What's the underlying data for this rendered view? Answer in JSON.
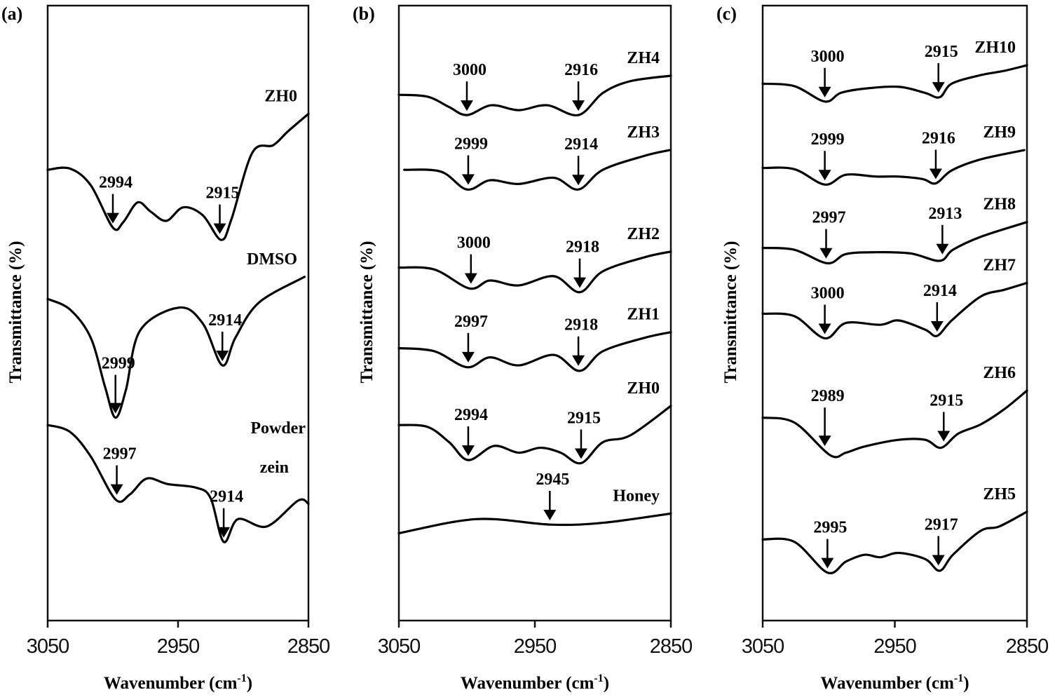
{
  "chart_data": [
    {
      "type": "line",
      "panel_label": "(a)",
      "xlabel": "Wavenumber (cm",
      "xlabel_sup": "-1",
      "xlabel_close": ")",
      "ylabel": "Transmittance (%)",
      "xlim": [
        3050,
        2850
      ],
      "xticks": [
        "3050",
        "2950",
        "2850"
      ],
      "ylim": [
        0,
        100
      ],
      "grid": false,
      "series": [
        {
          "name": [
            "ZH0"
          ],
          "points": [
            [
              3050,
              73.3
            ],
            [
              3033,
              73.5
            ],
            [
              3017,
              70.8
            ],
            [
              3000,
              63.9
            ],
            [
              2992,
              64.8
            ],
            [
              2981,
              68
            ],
            [
              2971,
              66.5
            ],
            [
              2959,
              65
            ],
            [
              2946,
              67.2
            ],
            [
              2931,
              65.9
            ],
            [
              2917,
              61.9
            ],
            [
              2909,
              65.3
            ],
            [
              2893,
              76.1
            ],
            [
              2877,
              77.3
            ],
            [
              2866,
              79.5
            ],
            [
              2850,
              82.4
            ]
          ],
          "peaks": [
            {
              "label": "2994",
              "x": 3000
            },
            {
              "label": "2915",
              "x": 2918
            }
          ]
        },
        {
          "name": [
            "DMSO"
          ],
          "points": [
            [
              3050,
              52.3
            ],
            [
              3033,
              50.6
            ],
            [
              3017,
              46
            ],
            [
              3006,
              38
            ],
            [
              2998,
              33
            ],
            [
              2990,
              37.5
            ],
            [
              2979,
              47.2
            ],
            [
              2949,
              50.9
            ],
            [
              2931,
              48.3
            ],
            [
              2916,
              41.5
            ],
            [
              2906,
              46
            ],
            [
              2888,
              51.7
            ],
            [
              2853,
              55.9
            ]
          ],
          "peaks": [
            {
              "label": "2999",
              "x": 2998,
              "long": true
            },
            {
              "label": "2914",
              "x": 2916
            }
          ]
        },
        {
          "name": [
            "Powder",
            "zein"
          ],
          "points": [
            [
              3050,
              31.8
            ],
            [
              3033,
              30.7
            ],
            [
              3017,
              26.7
            ],
            [
              2998,
              19.7
            ],
            [
              2987,
              20.5
            ],
            [
              2974,
              23.1
            ],
            [
              2958,
              22.2
            ],
            [
              2936,
              21.6
            ],
            [
              2925,
              19.9
            ],
            [
              2915,
              12.8
            ],
            [
              2904,
              16.5
            ],
            [
              2882,
              15.3
            ],
            [
              2858,
              19.5
            ],
            [
              2850,
              19
            ]
          ],
          "peaks": [
            {
              "label": "2997",
              "x": 2997
            },
            {
              "label": "2914",
              "x": 2915
            }
          ]
        }
      ]
    },
    {
      "type": "line",
      "panel_label": "(b)",
      "xlabel": "Wavenumber (cm",
      "xlabel_sup": "-1",
      "xlabel_close": ")",
      "ylabel": "Transmittance (%)",
      "xlim": [
        3050,
        2850
      ],
      "xticks": [
        "3050",
        "2950",
        "2850"
      ],
      "ylim": [
        0,
        100
      ],
      "grid": false,
      "series": [
        {
          "name": [
            "ZH4"
          ],
          "points": [
            [
              3050,
              85.5
            ],
            [
              3029,
              85.2
            ],
            [
              3013,
              83.5
            ],
            [
              3000,
              82.2
            ],
            [
              2982,
              83.8
            ],
            [
              2962,
              83
            ],
            [
              2941,
              83.8
            ],
            [
              2918,
              82.2
            ],
            [
              2900,
              85.8
            ],
            [
              2880,
              87.7
            ],
            [
              2850,
              88.6
            ]
          ],
          "peaks": [
            {
              "label": "3000",
              "x": 3000
            },
            {
              "label": "2916",
              "x": 2918
            }
          ]
        },
        {
          "name": [
            "ZH3"
          ],
          "points": [
            [
              3046,
              73.3
            ],
            [
              3019,
              73
            ],
            [
              3000,
              70.1
            ],
            [
              2983,
              71.6
            ],
            [
              2962,
              71
            ],
            [
              2936,
              72
            ],
            [
              2918,
              70.1
            ],
            [
              2900,
              73.3
            ],
            [
              2869,
              75.6
            ],
            [
              2851,
              76.5
            ]
          ],
          "peaks": [
            {
              "label": "2999",
              "x": 2999
            },
            {
              "label": "2914",
              "x": 2918
            }
          ]
        },
        {
          "name": [
            "ZH2"
          ],
          "points": [
            [
              3050,
              57.4
            ],
            [
              3024,
              57.1
            ],
            [
              2998,
              54
            ],
            [
              2983,
              55.3
            ],
            [
              2962,
              54.5
            ],
            [
              2936,
              56
            ],
            [
              2917,
              53.4
            ],
            [
              2900,
              56.8
            ],
            [
              2869,
              59.1
            ],
            [
              2850,
              60
            ]
          ],
          "peaks": [
            {
              "label": "3000",
              "x": 2997
            },
            {
              "label": "2918",
              "x": 2917
            }
          ]
        },
        {
          "name": [
            "ZH1"
          ],
          "points": [
            [
              3050,
              44.3
            ],
            [
              3024,
              43.8
            ],
            [
              3000,
              41.2
            ],
            [
              2983,
              42.8
            ],
            [
              2962,
              41.5
            ],
            [
              2936,
              43.2
            ],
            [
              2917,
              40.6
            ],
            [
              2900,
              43.8
            ],
            [
              2869,
              46
            ],
            [
              2850,
              46.9
            ]
          ],
          "peaks": [
            {
              "label": "2997",
              "x": 2999
            },
            {
              "label": "2918",
              "x": 2918
            }
          ]
        },
        {
          "name": [
            "ZH0"
          ],
          "points": [
            [
              3050,
              31.8
            ],
            [
              3029,
              31.5
            ],
            [
              3013,
              29
            ],
            [
              2999,
              26.1
            ],
            [
              2980,
              28.4
            ],
            [
              2962,
              27.3
            ],
            [
              2946,
              28.1
            ],
            [
              2931,
              27.3
            ],
            [
              2916,
              25.6
            ],
            [
              2900,
              29
            ],
            [
              2880,
              30.1
            ],
            [
              2850,
              34.9
            ]
          ],
          "peaks": [
            {
              "label": "2994",
              "x": 2999
            },
            {
              "label": "2915",
              "x": 2916
            }
          ]
        },
        {
          "name": [
            "Honey"
          ],
          "points": [
            [
              3050,
              14.2
            ],
            [
              2993,
              16.5
            ],
            [
              2938,
              15.6
            ],
            [
              2900,
              15.9
            ],
            [
              2850,
              17.4
            ]
          ],
          "peaks": [
            {
              "label": "2945",
              "x": 2939
            }
          ]
        }
      ]
    },
    {
      "type": "line",
      "panel_label": "(c)",
      "xlabel": "Wavenumber (cm",
      "xlabel_sup": "-1",
      "xlabel_close": ")",
      "ylabel": "Transmittance (%)",
      "xlim": [
        3050,
        2850
      ],
      "xticks": [
        "3050",
        "2950",
        "2850"
      ],
      "ylim": [
        0,
        100
      ],
      "grid": false,
      "series": [
        {
          "name": [
            "ZH10"
          ],
          "points": [
            [
              3050,
              87.3
            ],
            [
              3026,
              86.9
            ],
            [
              3003,
              84.4
            ],
            [
              2991,
              85.8
            ],
            [
              2973,
              86.5
            ],
            [
              2947,
              86.8
            ],
            [
              2927,
              85.8
            ],
            [
              2916,
              85.1
            ],
            [
              2907,
              87.3
            ],
            [
              2885,
              88.7
            ],
            [
              2867,
              89.4
            ],
            [
              2850,
              90.3
            ]
          ],
          "peaks": [
            {
              "label": "3000",
              "x": 3003
            },
            {
              "label": "2915",
              "x": 2917
            }
          ]
        },
        {
          "name": [
            "ZH9"
          ],
          "points": [
            [
              3050,
              73.6
            ],
            [
              3026,
              73.4
            ],
            [
              3003,
              70.9
            ],
            [
              2987,
              72.5
            ],
            [
              2964,
              72.2
            ],
            [
              2947,
              72.2
            ],
            [
              2929,
              71.8
            ],
            [
              2919,
              71.1
            ],
            [
              2907,
              73.2
            ],
            [
              2885,
              75
            ],
            [
              2852,
              76.5
            ]
          ],
          "peaks": [
            {
              "label": "2999",
              "x": 3003
            },
            {
              "label": "2916",
              "x": 2919
            }
          ]
        },
        {
          "name": [
            "ZH8"
          ],
          "points": [
            [
              3050,
              60.6
            ],
            [
              3026,
              60.3
            ],
            [
              3001,
              58.1
            ],
            [
              2987,
              59.6
            ],
            [
              2964,
              59.9
            ],
            [
              2938,
              59.7
            ],
            [
              2916,
              58.5
            ],
            [
              2906,
              60.3
            ],
            [
              2885,
              62.4
            ],
            [
              2850,
              64.8
            ]
          ],
          "peaks": [
            {
              "label": "2997",
              "x": 3002
            },
            {
              "label": "2913",
              "x": 2914
            }
          ]
        },
        {
          "name": [
            "ZH7"
          ],
          "points": [
            [
              3050,
              49.9
            ],
            [
              3026,
              49.5
            ],
            [
              3003,
              45.9
            ],
            [
              2987,
              48.4
            ],
            [
              2961,
              48.1
            ],
            [
              2947,
              48.8
            ],
            [
              2927,
              47.3
            ],
            [
              2918,
              46.3
            ],
            [
              2907,
              48.8
            ],
            [
              2885,
              52.7
            ],
            [
              2867,
              53.8
            ],
            [
              2850,
              54.9
            ]
          ],
          "peaks": [
            {
              "label": "3000",
              "x": 3003
            },
            {
              "label": "2914",
              "x": 2918
            }
          ]
        },
        {
          "name": [
            "ZH6"
          ],
          "points": [
            [
              3050,
              33
            ],
            [
              3026,
              32.2
            ],
            [
              2999,
              26.9
            ],
            [
              2987,
              27.3
            ],
            [
              2973,
              28.3
            ],
            [
              2947,
              29.4
            ],
            [
              2927,
              29.4
            ],
            [
              2915,
              28.1
            ],
            [
              2902,
              30.4
            ],
            [
              2885,
              31.9
            ],
            [
              2867,
              34.4
            ],
            [
              2850,
              37.4
            ]
          ],
          "peaks": [
            {
              "label": "2989",
              "x": 3003,
              "long": true
            },
            {
              "label": "2915",
              "x": 2913
            }
          ]
        },
        {
          "name": [
            "ZH5"
          ],
          "points": [
            [
              3050,
              13.2
            ],
            [
              3026,
              12.8
            ],
            [
              3001,
              7.8
            ],
            [
              2987,
              9.6
            ],
            [
              2973,
              10.7
            ],
            [
              2961,
              10.3
            ],
            [
              2947,
              11
            ],
            [
              2927,
              10
            ],
            [
              2916,
              8.1
            ],
            [
              2906,
              10.7
            ],
            [
              2885,
              14.6
            ],
            [
              2871,
              15.3
            ],
            [
              2850,
              17.7
            ]
          ],
          "peaks": [
            {
              "label": "2995",
              "x": 3001
            },
            {
              "label": "2917",
              "x": 2917
            }
          ]
        }
      ]
    }
  ]
}
